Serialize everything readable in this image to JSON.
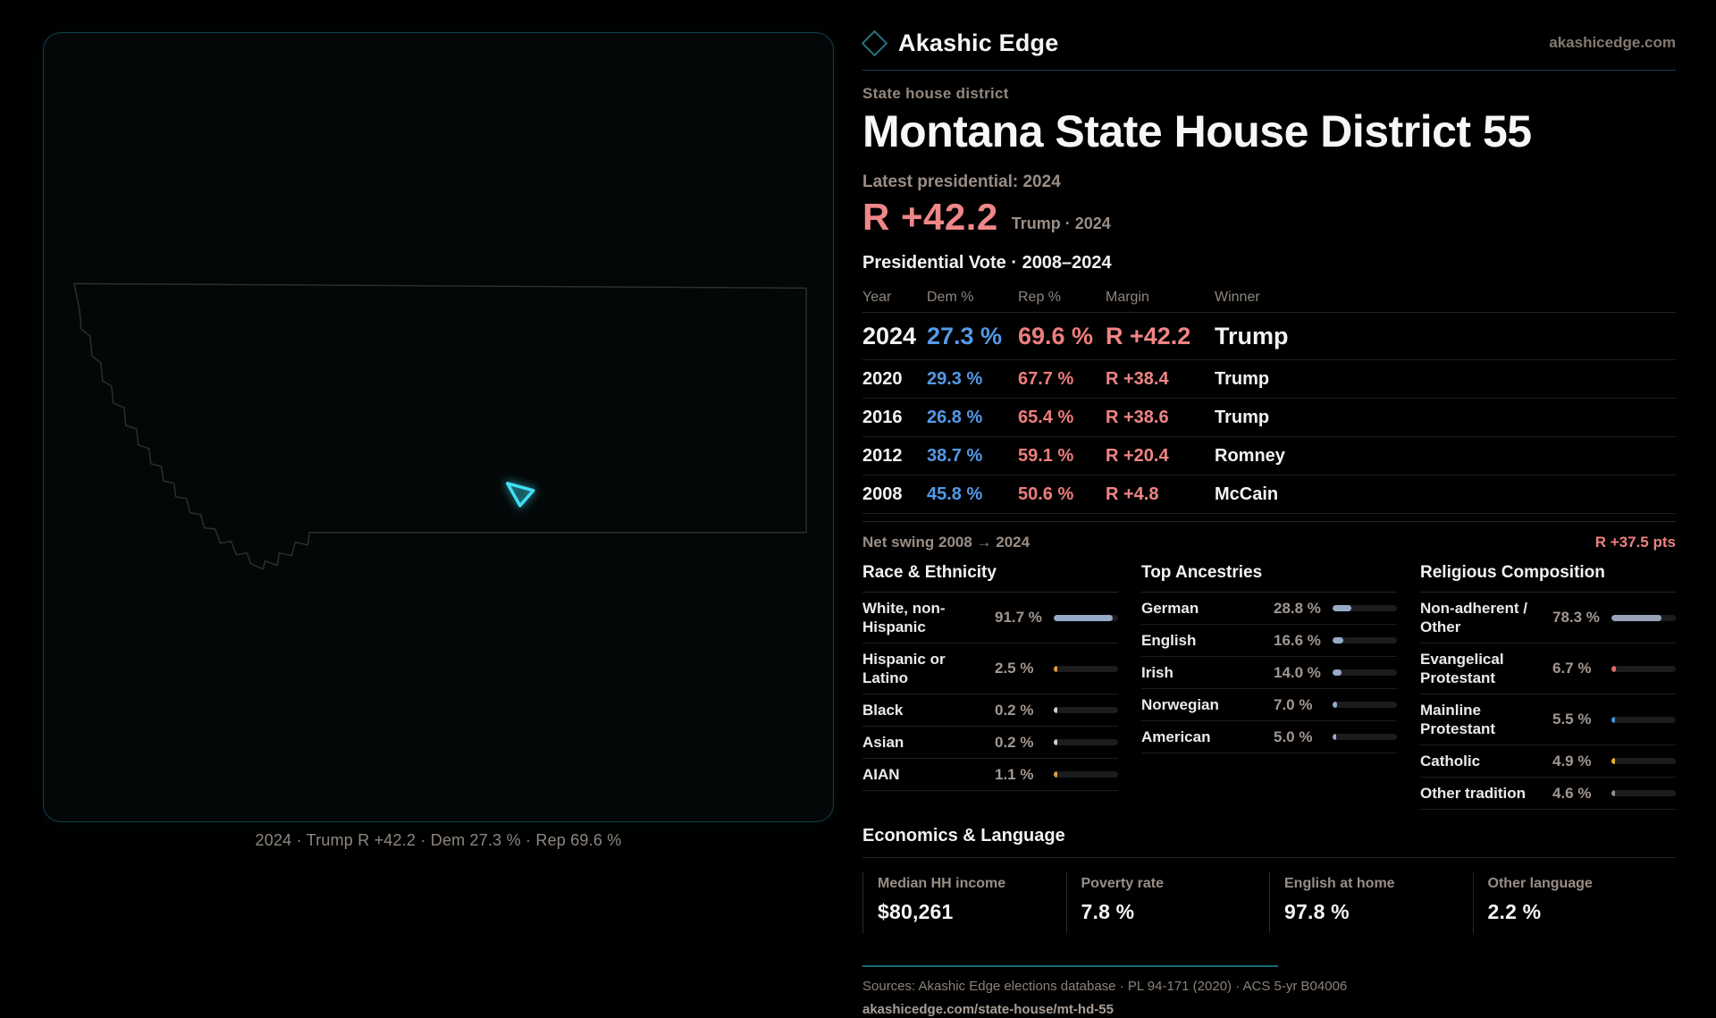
{
  "header": {
    "brand": "Akashic Edge",
    "site": "akashicedge.com",
    "eyebrow": "State house district",
    "title": "Montana State House District 55"
  },
  "latest": {
    "label": "Latest presidential: 2024",
    "margin": "R +42.2",
    "note": "Trump · 2024"
  },
  "table": {
    "title": "Presidential Vote · 2008–2024",
    "columns": {
      "year": "Year",
      "dem": "Dem %",
      "rep": "Rep %",
      "margin": "Margin",
      "winner": "Winner"
    },
    "rows": [
      {
        "year": "2024",
        "dem": "27.3 %",
        "rep": "69.6 %",
        "margin": "R +42.2",
        "winner": "Trump"
      },
      {
        "year": "2020",
        "dem": "29.3 %",
        "rep": "67.7 %",
        "margin": "R +38.4",
        "winner": "Trump"
      },
      {
        "year": "2016",
        "dem": "26.8 %",
        "rep": "65.4 %",
        "margin": "R +38.6",
        "winner": "Trump"
      },
      {
        "year": "2012",
        "dem": "38.7 %",
        "rep": "59.1 %",
        "margin": "R +20.4",
        "winner": "Romney"
      },
      {
        "year": "2008",
        "dem": "45.8 %",
        "rep": "50.6 %",
        "margin": "R +4.8",
        "winner": "McCain"
      }
    ],
    "net_swing_label": "Net swing 2008 → 2024",
    "net_swing_value": "R +37.5 pts"
  },
  "demographics": {
    "race": {
      "title": "Race & Ethnicity",
      "rows": [
        {
          "label": "White, non-Hispanic",
          "value": "91.7 %",
          "pct": 91.7,
          "color": "#97abc9"
        },
        {
          "label": "Hispanic or Latino",
          "value": "2.5 %",
          "pct": 2.5,
          "color": "#e29a3c"
        },
        {
          "label": "Black",
          "value": "0.2 %",
          "pct": 0.2,
          "color": "#cfcfcf"
        },
        {
          "label": "Asian",
          "value": "0.2 %",
          "pct": 0.2,
          "color": "#cfcfcf"
        },
        {
          "label": "AIAN",
          "value": "1.1 %",
          "pct": 1.1,
          "color": "#e29a3c"
        }
      ]
    },
    "ancestries": {
      "title": "Top Ancestries",
      "rows": [
        {
          "label": "German",
          "value": "28.8 %",
          "pct": 28.8,
          "color": "#97abc9"
        },
        {
          "label": "English",
          "value": "16.6 %",
          "pct": 16.6,
          "color": "#97abc9"
        },
        {
          "label": "Irish",
          "value": "14.0 %",
          "pct": 14.0,
          "color": "#97abc9"
        },
        {
          "label": "Norwegian",
          "value": "7.0 %",
          "pct": 7.0,
          "color": "#97abc9"
        },
        {
          "label": "American",
          "value": "5.0 %",
          "pct": 5.0,
          "color": "#97abc9"
        }
      ]
    },
    "religion": {
      "title": "Religious Composition",
      "rows": [
        {
          "label": "Non-adherent / Other",
          "value": "78.3 %",
          "pct": 78.3,
          "color": "#97a3b8"
        },
        {
          "label": "Evangelical Protestant",
          "value": "6.7 %",
          "pct": 6.7,
          "color": "#e06a6a"
        },
        {
          "label": "Mainline Protestant",
          "value": "5.5 %",
          "pct": 5.5,
          "color": "#4a90e2"
        },
        {
          "label": "Catholic",
          "value": "4.9 %",
          "pct": 4.9,
          "color": "#e6b42e"
        },
        {
          "label": "Other tradition",
          "value": "4.6 %",
          "pct": 4.6,
          "color": "#8f8f8f"
        }
      ]
    }
  },
  "economics": {
    "title": "Economics & Language",
    "stats": [
      {
        "label": "Median HH income",
        "value": "$80,261"
      },
      {
        "label": "Poverty rate",
        "value": "7.8 %"
      },
      {
        "label": "English at home",
        "value": "97.8 %"
      },
      {
        "label": "Other language",
        "value": "2.2 %"
      }
    ]
  },
  "map": {
    "caption": "2024 · Trump R +42.2 · Dem 27.3 % · Rep 69.6 %"
  },
  "footer": {
    "sources": "Sources: Akashic Edge elections database · PL 94-171 (2020) · ACS 5-yr B04006",
    "permalink": "akashicedge.com/state-house/mt-hd-55"
  },
  "colors": {
    "accent_rep": "#ee8787",
    "accent_dem": "#549ae8",
    "district_highlight": "#3fe0f4",
    "teal_rule": "#1a6b77",
    "muted_text": "#93887e"
  }
}
